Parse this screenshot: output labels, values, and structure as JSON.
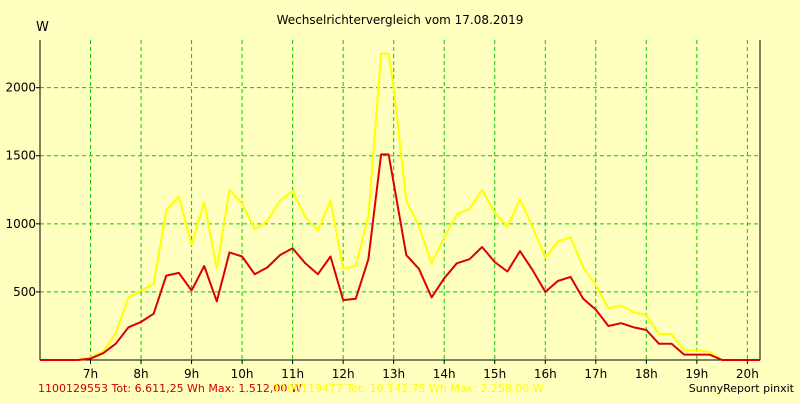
{
  "chart_data": {
    "type": "line",
    "title": "Wechselrichtervergleich vom 17.08.2019",
    "ylabel": "W",
    "xlabel": "",
    "xlim": [
      6.0,
      20.25
    ],
    "ylim": [
      0,
      2350
    ],
    "grid": true,
    "x_ticks": [
      7,
      8,
      9,
      10,
      11,
      12,
      13,
      14,
      15,
      16,
      17,
      18,
      19,
      20
    ],
    "x_tick_labels": [
      "7h",
      "8h",
      "9h",
      "10h",
      "11h",
      "12h",
      "13h",
      "14h",
      "15h",
      "16h",
      "17h",
      "18h",
      "19h",
      "20h"
    ],
    "y_ticks": [
      500,
      1000,
      1500,
      2000
    ],
    "y_tick_labels": [
      "500",
      "1000",
      "1500",
      "2000"
    ],
    "series": [
      {
        "name": "1100119477",
        "color": "#ffff00",
        "x": [
          6.0,
          6.25,
          6.5,
          6.75,
          7.0,
          7.25,
          7.5,
          7.75,
          8.0,
          8.25,
          8.5,
          8.75,
          9.0,
          9.25,
          9.5,
          9.75,
          10.0,
          10.25,
          10.5,
          10.75,
          11.0,
          11.25,
          11.5,
          11.75,
          12.0,
          12.25,
          12.5,
          12.75,
          12.9,
          13.0,
          13.25,
          13.5,
          13.75,
          14.0,
          14.25,
          14.5,
          14.75,
          15.0,
          15.25,
          15.5,
          15.75,
          16.0,
          16.25,
          16.5,
          16.75,
          17.0,
          17.25,
          17.5,
          17.75,
          18.0,
          18.25,
          18.5,
          18.75,
          19.0,
          19.25,
          19.5,
          19.75,
          20.0,
          20.25
        ],
        "y": [
          0,
          0,
          0,
          0,
          20,
          60,
          200,
          460,
          510,
          560,
          1100,
          1200,
          850,
          1160,
          670,
          1250,
          1150,
          960,
          1020,
          1170,
          1240,
          1050,
          950,
          1170,
          670,
          690,
          1060,
          2250,
          2250,
          2000,
          1170,
          980,
          710,
          900,
          1070,
          1110,
          1250,
          1080,
          980,
          1180,
          980,
          750,
          870,
          900,
          680,
          550,
          380,
          400,
          350,
          330,
          190,
          190,
          70,
          70,
          60,
          0,
          0,
          0,
          0
        ]
      },
      {
        "name": "1100129553",
        "color": "#dd0000",
        "x": [
          6.0,
          6.25,
          6.5,
          6.75,
          7.0,
          7.25,
          7.5,
          7.75,
          8.0,
          8.25,
          8.5,
          8.75,
          9.0,
          9.25,
          9.5,
          9.75,
          10.0,
          10.25,
          10.5,
          10.75,
          11.0,
          11.25,
          11.5,
          11.75,
          12.0,
          12.25,
          12.5,
          12.75,
          12.9,
          13.0,
          13.25,
          13.5,
          13.75,
          14.0,
          14.25,
          14.5,
          14.75,
          15.0,
          15.25,
          15.5,
          15.75,
          16.0,
          16.25,
          16.5,
          16.75,
          17.0,
          17.25,
          17.5,
          17.75,
          18.0,
          18.25,
          18.5,
          18.75,
          19.0,
          19.25,
          19.5,
          19.75,
          20.0,
          20.25
        ],
        "y": [
          0,
          0,
          0,
          0,
          10,
          50,
          120,
          240,
          280,
          340,
          620,
          640,
          510,
          690,
          430,
          790,
          760,
          630,
          680,
          770,
          820,
          710,
          630,
          760,
          440,
          450,
          740,
          1510,
          1510,
          1300,
          770,
          670,
          460,
          600,
          710,
          740,
          830,
          720,
          650,
          800,
          660,
          500,
          580,
          610,
          450,
          370,
          250,
          270,
          240,
          220,
          120,
          120,
          40,
          40,
          40,
          0,
          0,
          0,
          0
        ]
      }
    ]
  },
  "footer": {
    "series_red": "1100129553 Tot: 6.611,25 Wh Max: 1.512,00 W",
    "series_yellow": "1100119477 Tot: 10.141,75 Wh Max: 2.258,00 W",
    "credit": "SunnyReport pinxit"
  },
  "colors": {
    "background": "#ffffc0",
    "plot_background": "#ffffc0",
    "grid": "#00cc00",
    "axis": "#000000"
  }
}
